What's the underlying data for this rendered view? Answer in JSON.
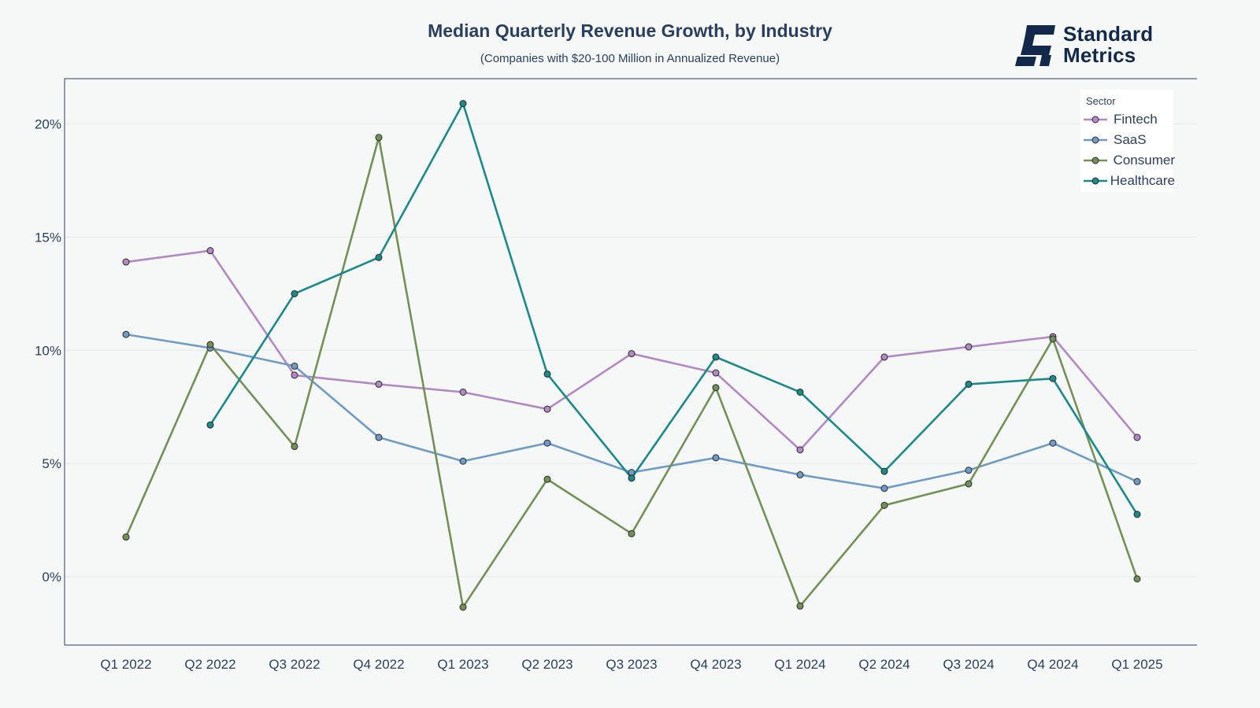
{
  "header": {
    "title": "Median Quarterly Revenue Growth, by Industry",
    "subtitle": "(Companies with $20-100 Million in Annualized Revenue)"
  },
  "logo": {
    "line1": "Standard",
    "line2": "Metrics",
    "color": "#13294b"
  },
  "legend": {
    "title": "Sector",
    "placement": "top-right"
  },
  "chart_data": {
    "type": "line",
    "title": "Median Quarterly Revenue Growth, by Industry",
    "subtitle": "(Companies with $20-100 Million in Annualized Revenue)",
    "xlabel": "",
    "ylabel": "",
    "categories": [
      "Q1 2022",
      "Q2 2022",
      "Q3 2022",
      "Q4 2022",
      "Q1 2023",
      "Q2 2023",
      "Q3 2023",
      "Q4 2023",
      "Q1 2024",
      "Q2 2024",
      "Q3 2024",
      "Q4 2024",
      "Q1 2025"
    ],
    "yticks": [
      0,
      5,
      10,
      15,
      20
    ],
    "ytick_labels": [
      "0%",
      "5%",
      "10%",
      "15%",
      "20%"
    ],
    "ylim": [
      -3,
      22
    ],
    "grid": true,
    "series": [
      {
        "name": "Fintech",
        "color": "#b388c4",
        "values": [
          13.9,
          14.4,
          8.9,
          8.5,
          8.15,
          7.4,
          9.85,
          9.0,
          5.6,
          9.7,
          10.15,
          10.6,
          6.15
        ]
      },
      {
        "name": "SaaS",
        "color": "#6f9bc6",
        "values": [
          10.7,
          10.1,
          9.3,
          6.15,
          5.1,
          5.9,
          4.6,
          5.25,
          4.5,
          3.9,
          4.7,
          5.9,
          4.2
        ]
      },
      {
        "name": "Consumer",
        "color": "#739157",
        "values": [
          1.75,
          10.25,
          5.75,
          19.4,
          -1.35,
          4.3,
          1.9,
          8.35,
          -1.3,
          3.15,
          4.1,
          10.5,
          -0.1
        ]
      },
      {
        "name": "Healthcare",
        "color": "#1a8a8a",
        "values": [
          null,
          6.7,
          12.5,
          14.1,
          20.9,
          8.95,
          4.35,
          9.7,
          8.15,
          4.65,
          8.5,
          8.75,
          2.75
        ]
      }
    ]
  }
}
